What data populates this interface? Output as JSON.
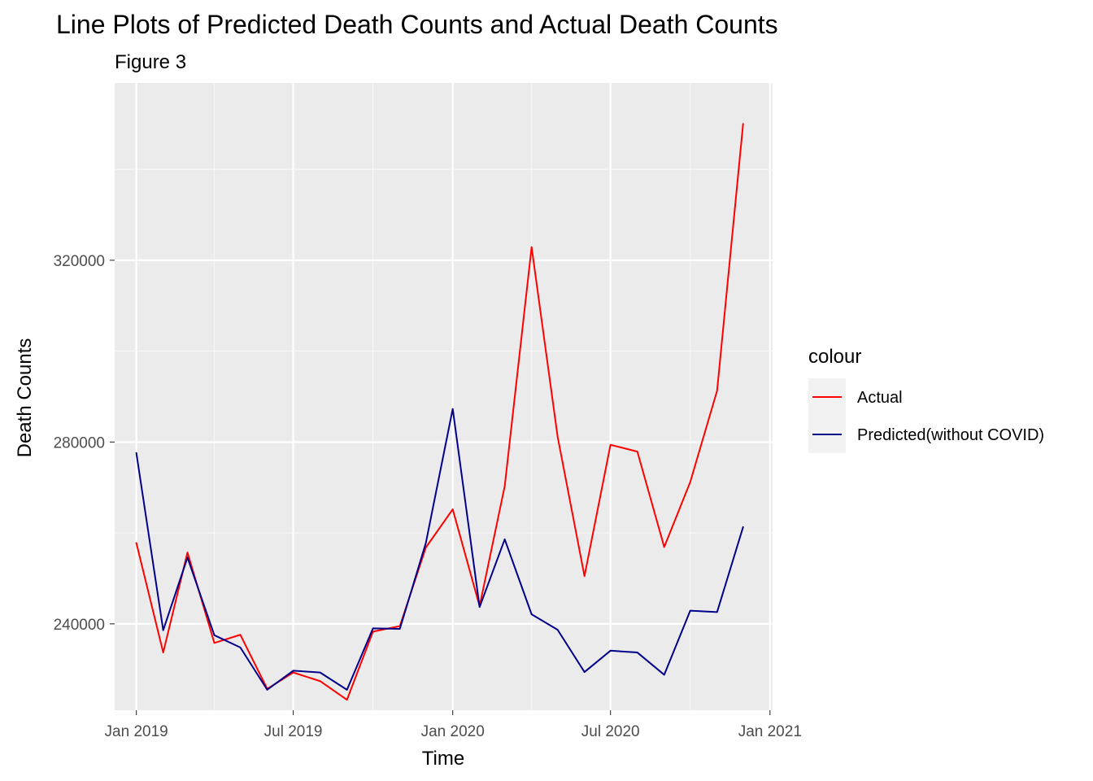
{
  "chart_data": {
    "type": "line",
    "title": "Line Plots of Predicted Death Counts and Actual Death Counts",
    "subtitle": "Figure 3",
    "xlabel": "Time",
    "ylabel": "Death Counts",
    "x_ticks": [
      "Jan 2019",
      "Jul 2019",
      "Jan 2020",
      "Jul 2020",
      "Jan 2021"
    ],
    "y_ticks": [
      "240000",
      "280000",
      "320000"
    ],
    "xlim": [
      "2018-12-07",
      "2021-01-04"
    ],
    "ylim": [
      221000,
      359000
    ],
    "grid": true,
    "legend": {
      "title": "colour",
      "position": "right"
    },
    "x": [
      "2019-01-01",
      "2019-02-01",
      "2019-03-01",
      "2019-04-01",
      "2019-05-01",
      "2019-06-01",
      "2019-07-01",
      "2019-08-01",
      "2019-09-01",
      "2019-10-01",
      "2019-11-01",
      "2019-12-01",
      "2020-01-01",
      "2020-02-01",
      "2020-03-01",
      "2020-04-01",
      "2020-05-01",
      "2020-06-01",
      "2020-07-01",
      "2020-08-01",
      "2020-09-01",
      "2020-10-01",
      "2020-11-01",
      "2020-12-01"
    ],
    "series": [
      {
        "name": "Actual",
        "color": "#ff0000",
        "values": [
          257800,
          233700,
          255700,
          235800,
          237600,
          225700,
          229300,
          227400,
          223300,
          238300,
          239500,
          256800,
          265200,
          243900,
          270300,
          322900,
          281200,
          250500,
          279400,
          277900,
          256900,
          271200,
          291300,
          350000
        ]
      },
      {
        "name": "Predicted(without COVID)",
        "color": "#00008b",
        "values": [
          277600,
          238600,
          254600,
          237500,
          234800,
          225500,
          229700,
          229300,
          225500,
          239000,
          238900,
          257800,
          287300,
          243700,
          258600,
          242100,
          238700,
          229400,
          234100,
          233700,
          228800,
          242900,
          242600,
          261300
        ]
      }
    ]
  }
}
